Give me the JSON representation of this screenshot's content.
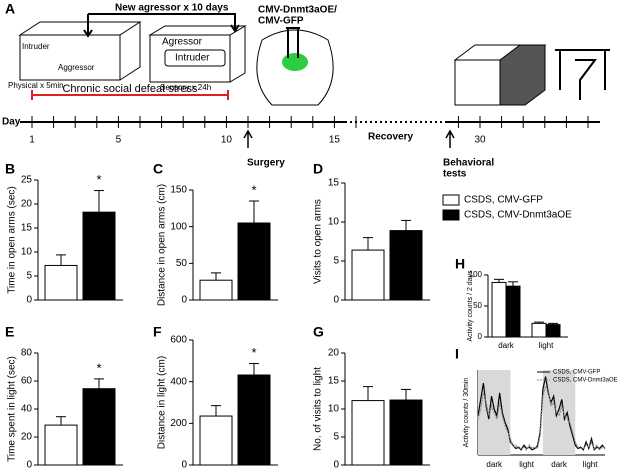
{
  "panel_a": {
    "letter": "A",
    "top_label": "New agressor x 10 days",
    "left_cage": {
      "intruder": "Intruder",
      "aggressor": "Aggressor",
      "caption": "Physical x 5min"
    },
    "right_cage": {
      "aggressor": "Agressor",
      "intruder": "Intruder",
      "caption": "Sensory x 24h"
    },
    "bracket_label": "Chronic social defeat stress",
    "virus": [
      "CMV-Dnmt3aOE/",
      "CMV-GFP"
    ],
    "timeline": {
      "label": "Day",
      "ticks": [
        1,
        5,
        10,
        15,
        30
      ],
      "recovery": "Recovery",
      "surgery": "Surgery",
      "tests": [
        "Behavioral",
        "tests"
      ]
    }
  },
  "legend": [
    {
      "name": "CSDS, CMV-GFP",
      "color": "#ffffff"
    },
    {
      "name": "CSDS, CMV-Dnmt3aOE",
      "color": "#000000"
    }
  ],
  "chart_data": [
    {
      "type": "bar",
      "panel": "B",
      "ylabel": "Time in open arms (sec)",
      "values": [
        7.2,
        18.3
      ],
      "errors": [
        2.2,
        4.5
      ],
      "colors": [
        "#ffffff",
        "#000000"
      ],
      "annotation": "*",
      "ylim": [
        0,
        25
      ],
      "yticks": [
        0,
        5,
        10,
        15,
        20,
        25
      ]
    },
    {
      "type": "bar",
      "panel": "C",
      "ylabel": "Distance in open arms (cm)",
      "values": [
        27,
        105
      ],
      "errors": [
        10,
        30
      ],
      "colors": [
        "#ffffff",
        "#000000"
      ],
      "annotation": "*",
      "ylim": [
        0,
        150
      ],
      "yticks": [
        0,
        50,
        100,
        150
      ]
    },
    {
      "type": "bar",
      "panel": "D",
      "ylabel": "Visits to open arms",
      "values": [
        6.4,
        8.9
      ],
      "errors": [
        1.6,
        1.3
      ],
      "colors": [
        "#ffffff",
        "#000000"
      ],
      "ylim": [
        0,
        15
      ],
      "yticks": [
        0,
        5,
        10,
        15
      ]
    },
    {
      "type": "bar",
      "panel": "E",
      "ylabel": "Time spent in light (sec)",
      "values": [
        28.5,
        54.5
      ],
      "errors": [
        6,
        7
      ],
      "colors": [
        "#ffffff",
        "#000000"
      ],
      "annotation": "*",
      "ylim": [
        0,
        80
      ],
      "yticks": [
        0,
        20,
        40,
        60,
        80
      ]
    },
    {
      "type": "bar",
      "panel": "F",
      "ylabel": "Distance in light (cm)",
      "values": [
        235,
        432
      ],
      "errors": [
        50,
        55
      ],
      "colors": [
        "#ffffff",
        "#000000"
      ],
      "annotation": "*",
      "ylim": [
        0,
        600
      ],
      "yticks": [
        0,
        200,
        400,
        600
      ]
    },
    {
      "type": "bar",
      "panel": "G",
      "ylabel": "No. of visits to light",
      "values": [
        11.5,
        11.6
      ],
      "errors": [
        2.5,
        1.9
      ],
      "colors": [
        "#ffffff",
        "#000000"
      ],
      "ylim": [
        0,
        20
      ],
      "yticks": [
        0,
        5,
        10,
        15,
        20
      ]
    },
    {
      "type": "grouped",
      "panel": "H",
      "ylabel": "Activity counts / 2 days",
      "categories": [
        "dark",
        "light"
      ],
      "series": [
        {
          "color": "#ffffff",
          "values": [
            88,
            22
          ],
          "errors": [
            5,
            2
          ]
        },
        {
          "color": "#000000",
          "values": [
            82,
            20
          ],
          "errors": [
            7,
            2
          ]
        }
      ],
      "ylim": [
        0,
        100
      ],
      "yticks": [
        0,
        50,
        100
      ]
    },
    {
      "type": "line",
      "panel": "I",
      "ylabel": "Activity counts / 30min",
      "periods": [
        "dark",
        "light",
        "dark",
        "light"
      ],
      "shaded": [
        true,
        false,
        true,
        false
      ],
      "ylim": [
        0,
        130
      ],
      "series": [
        {
          "name": "CSDS, CMV-GFP",
          "color": "#000000",
          "dashed": false,
          "values": [
            60,
            85,
            110,
            75,
            55,
            90,
            70,
            60,
            95,
            65,
            50,
            40,
            20,
            15,
            10,
            12,
            8,
            15,
            10,
            12,
            8,
            10,
            14,
            35,
            100,
            120,
            95,
            80,
            90,
            60,
            70,
            85,
            55,
            65,
            45,
            30,
            15,
            10,
            12,
            8,
            20,
            10,
            25,
            8,
            12,
            10,
            15,
            10
          ]
        },
        {
          "name": "CSDS, CMV-Dnmt3aOE",
          "color": "#888888",
          "dashed": true,
          "values": [
            55,
            70,
            95,
            80,
            60,
            75,
            65,
            55,
            80,
            60,
            45,
            35,
            25,
            12,
            15,
            10,
            10,
            12,
            8,
            15,
            10,
            12,
            10,
            30,
            90,
            105,
            100,
            75,
            80,
            65,
            60,
            75,
            60,
            55,
            50,
            35,
            20,
            12,
            10,
            10,
            15,
            12,
            18,
            10,
            15,
            8,
            12,
            12
          ]
        }
      ]
    }
  ]
}
